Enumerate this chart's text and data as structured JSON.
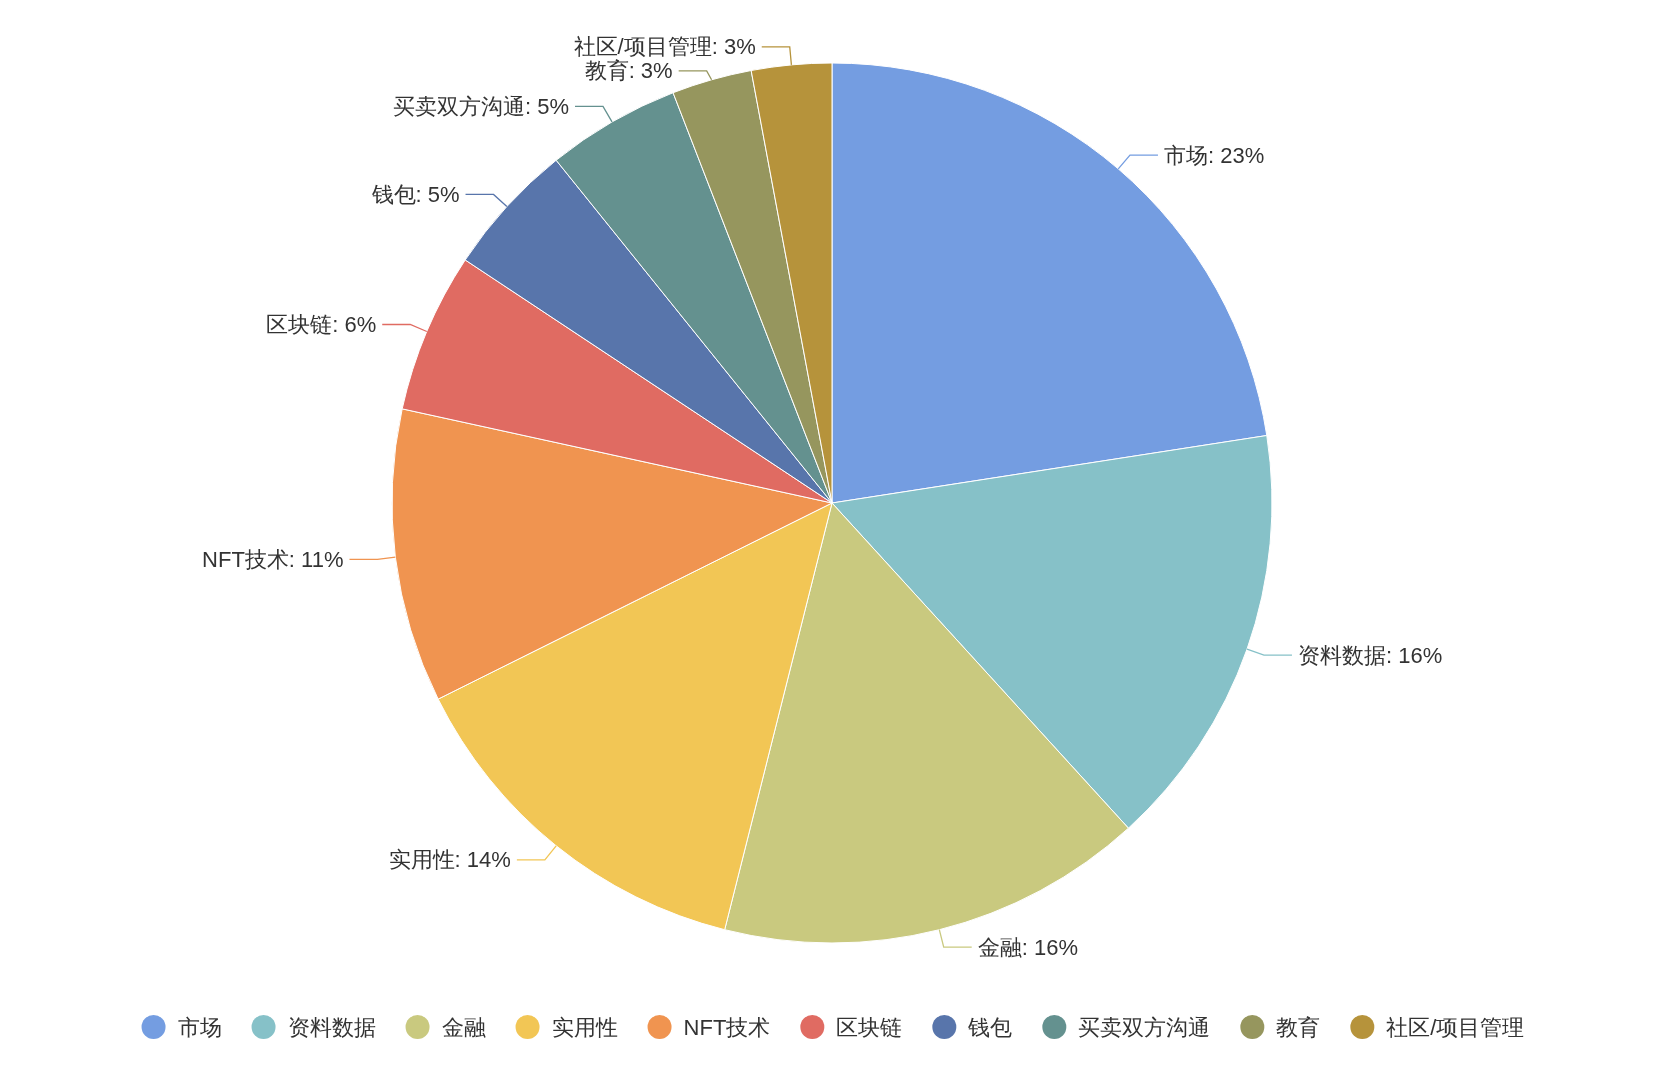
{
  "chart_data": {
    "type": "pie",
    "categories": [
      "市场",
      "资料数据",
      "金融",
      "实用性",
      "NFT技术",
      "区块链",
      "钱包",
      "买卖双方沟通",
      "教育",
      "社区/项目管理"
    ],
    "values": [
      23,
      16,
      16,
      14,
      11,
      6,
      5,
      5,
      3,
      3
    ],
    "colors": [
      "#749de1",
      "#86c1c8",
      "#c9c97f",
      "#f2c655",
      "#f09450",
      "#e06b62",
      "#5875ab",
      "#64918f",
      "#96965e",
      "#b6933b"
    ],
    "value_labels": [
      "市场: 23%",
      "资料数据: 16%",
      "金融: 16%",
      "实用性: 14%",
      "NFT技术: 11%",
      "区块链: 6%",
      "钱包: 5%",
      "买卖双方沟通: 5%",
      "教育: 3%",
      "社区/项目管理: 3%"
    ],
    "legend": "bottom"
  }
}
